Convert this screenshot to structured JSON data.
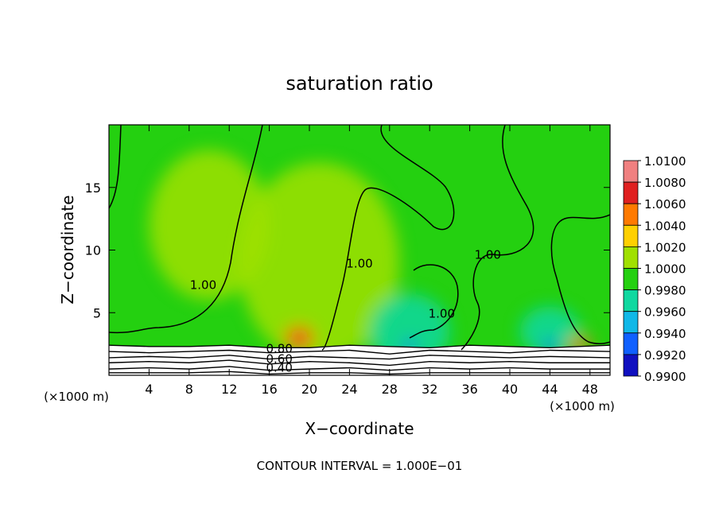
{
  "chart_data": {
    "type": "contour",
    "title": "saturation ratio",
    "xlabel": "X−coordinate",
    "ylabel": "Z−coordinate",
    "x_unit_left": "(×1000 m)",
    "x_unit_right": "(×1000 m)",
    "xlim": [
      0,
      50
    ],
    "ylim": [
      0,
      20
    ],
    "x_ticks": [
      4,
      8,
      12,
      16,
      20,
      24,
      28,
      32,
      36,
      40,
      44,
      48
    ],
    "y_ticks": [
      5,
      10,
      15
    ],
    "footer": "CONTOUR INTERVAL = 1.000E−01",
    "colorbar": {
      "levels": [
        "1.0100",
        "1.0080",
        "1.0060",
        "1.0040",
        "1.0020",
        "1.0000",
        "0.9980",
        "0.9960",
        "0.9940",
        "0.9920",
        "0.9900"
      ],
      "colors": [
        "#f08080",
        "#e02020",
        "#ff7a00",
        "#ffd000",
        "#a0e000",
        "#24d010",
        "#10d8a0",
        "#10b8e8",
        "#1060ff",
        "#1010c0",
        "#6010a0"
      ]
    },
    "contour_labels": [
      {
        "text": "1.00",
        "x": 9.4,
        "z": 6.9
      },
      {
        "text": "1.00",
        "x": 25.0,
        "z": 8.6
      },
      {
        "text": "1.00",
        "x": 33.2,
        "z": 4.6
      },
      {
        "text": "1.00",
        "x": 37.8,
        "z": 9.3
      },
      {
        "text": "0.80",
        "x": 17.0,
        "z": 1.8
      },
      {
        "text": "0.60",
        "x": 17.0,
        "z": 1.0
      },
      {
        "text": "0.40",
        "x": 17.0,
        "z": 0.3
      }
    ],
    "contour_lines_z": [
      [
        2.4,
        2.3,
        2.3,
        2.4,
        2.2,
        2.2,
        2.4,
        2.3,
        2.2,
        2.4,
        2.3,
        2.2,
        2.4
      ],
      [
        1.9,
        1.8,
        1.9,
        2.0,
        1.8,
        1.9,
        2.0,
        1.7,
        2.0,
        1.9,
        1.8,
        2.0,
        1.9
      ],
      [
        1.4,
        1.5,
        1.4,
        1.6,
        1.3,
        1.5,
        1.4,
        1.3,
        1.6,
        1.5,
        1.4,
        1.5,
        1.4
      ],
      [
        1.0,
        1.1,
        1.0,
        1.2,
        0.9,
        1.1,
        1.0,
        0.8,
        1.1,
        1.0,
        1.1,
        1.0,
        1.0
      ],
      [
        0.5,
        0.6,
        0.5,
        0.7,
        0.4,
        0.5,
        0.6,
        0.4,
        0.6,
        0.5,
        0.6,
        0.5,
        0.5
      ],
      [
        0.2,
        0.2,
        0.2,
        0.3,
        0.1,
        0.2,
        0.2,
        0.1,
        0.2,
        0.2,
        0.2,
        0.2,
        0.2
      ]
    ],
    "contour_line_x": [
      0,
      4,
      8,
      12,
      16,
      20,
      24,
      28,
      32,
      36,
      40,
      44,
      50
    ],
    "fill_patches": [
      {
        "color": "#a0e000",
        "x": 21,
        "z": 9,
        "rx": 8,
        "rz": 8
      },
      {
        "color": "#a0e000",
        "x": 10,
        "z": 12,
        "rx": 6,
        "rz": 6
      },
      {
        "color": "#10d8a0",
        "x": 30,
        "z": 3.5,
        "rx": 4,
        "rz": 3
      },
      {
        "color": "#10d8a0",
        "x": 44,
        "z": 3.5,
        "rx": 3,
        "rz": 2
      },
      {
        "color": "#ff7a00",
        "x": 19,
        "z": 3.0,
        "rx": 1.5,
        "rz": 1.0
      },
      {
        "color": "#e02020",
        "x": 19,
        "z": 2.8,
        "rx": 0.8,
        "rz": 0.5
      },
      {
        "color": "#ff7a00",
        "x": 47,
        "z": 2.5,
        "rx": 1.2,
        "rz": 0.6
      },
      {
        "color": "#1060ff",
        "x": 30,
        "z": 2.4,
        "rx": 0.7,
        "rz": 0.4
      },
      {
        "color": "#1060ff",
        "x": 44,
        "z": 2.4,
        "rx": 0.8,
        "rz": 0.4
      }
    ]
  }
}
